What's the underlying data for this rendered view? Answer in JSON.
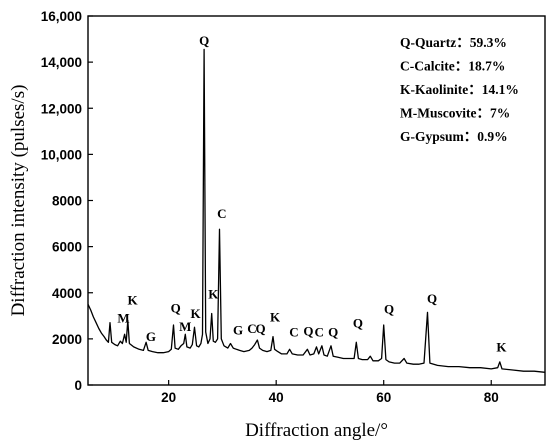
{
  "chart_data": {
    "type": "line",
    "xlabel": "Diffraction angle/°",
    "ylabel": "Diffraction intensity (pulses/s)",
    "xlim": [
      5,
      90
    ],
    "ylim": [
      0,
      16000
    ],
    "x_ticks": [
      {
        "value": 20,
        "label": "20"
      },
      {
        "value": 40,
        "label": "40"
      },
      {
        "value": 60,
        "label": "60"
      },
      {
        "value": 80,
        "label": "80"
      }
    ],
    "y_ticks": [
      {
        "value": 0,
        "label": "0"
      },
      {
        "value": 2000,
        "label": "2000"
      },
      {
        "value": 4000,
        "label": "4000"
      },
      {
        "value": 6000,
        "label": "6000"
      },
      {
        "value": 8000,
        "label": "8000"
      },
      {
        "value": 10000,
        "label": "10,000"
      },
      {
        "value": 12000,
        "label": "12,000"
      },
      {
        "value": 14000,
        "label": "14,000"
      },
      {
        "value": 16000,
        "label": "16,000"
      }
    ],
    "grid": false,
    "legend_position": "top-right",
    "legend": [
      "Q-Quartz：59.3%",
      "C-Calcite：18.7%",
      "K-Kaolinite：14.1%",
      "M-Muscovite：7%",
      "G-Gypsum：0.9%"
    ],
    "series": [
      {
        "color": "#000000",
        "points": [
          [
            5.0,
            3500
          ],
          [
            5.5,
            3250
          ],
          [
            6.0,
            2950
          ],
          [
            6.5,
            2700
          ],
          [
            7.0,
            2450
          ],
          [
            7.5,
            2250
          ],
          [
            8.0,
            2100
          ],
          [
            8.4,
            1950
          ],
          [
            8.8,
            1850
          ],
          [
            9.1,
            2700
          ],
          [
            9.4,
            1850
          ],
          [
            10.0,
            1750
          ],
          [
            10.5,
            1700
          ],
          [
            11.0,
            1900
          ],
          [
            11.4,
            1800
          ],
          [
            11.8,
            2200
          ],
          [
            12.1,
            1850
          ],
          [
            12.4,
            2800
          ],
          [
            12.7,
            1800
          ],
          [
            13.5,
            1650
          ],
          [
            14.5,
            1550
          ],
          [
            15.3,
            1500
          ],
          [
            15.8,
            1850
          ],
          [
            16.2,
            1500
          ],
          [
            17.0,
            1450
          ],
          [
            18.0,
            1400
          ],
          [
            19.0,
            1400
          ],
          [
            20.0,
            1450
          ],
          [
            20.5,
            1550
          ],
          [
            20.9,
            2600
          ],
          [
            21.2,
            1600
          ],
          [
            21.8,
            1550
          ],
          [
            22.3,
            1700
          ],
          [
            22.8,
            1800
          ],
          [
            23.1,
            2200
          ],
          [
            23.4,
            1650
          ],
          [
            24.0,
            1600
          ],
          [
            24.4,
            1750
          ],
          [
            24.8,
            2500
          ],
          [
            25.2,
            1700
          ],
          [
            25.6,
            1650
          ],
          [
            26.0,
            1800
          ],
          [
            26.3,
            2200
          ],
          [
            26.6,
            14550
          ],
          [
            26.9,
            2300
          ],
          [
            27.3,
            1800
          ],
          [
            27.7,
            2000
          ],
          [
            28.0,
            3100
          ],
          [
            28.3,
            1900
          ],
          [
            28.7,
            1850
          ],
          [
            29.1,
            2000
          ],
          [
            29.45,
            6750
          ],
          [
            29.8,
            2000
          ],
          [
            30.3,
            1700
          ],
          [
            31.0,
            1600
          ],
          [
            31.5,
            1800
          ],
          [
            32.0,
            1600
          ],
          [
            32.6,
            1550
          ],
          [
            33.2,
            1500
          ],
          [
            34.0,
            1450
          ],
          [
            35.0,
            1500
          ],
          [
            35.5,
            1600
          ],
          [
            36.0,
            1750
          ],
          [
            36.5,
            1950
          ],
          [
            36.9,
            1600
          ],
          [
            37.5,
            1500
          ],
          [
            38.3,
            1450
          ],
          [
            39.0,
            1500
          ],
          [
            39.4,
            2100
          ],
          [
            39.7,
            1550
          ],
          [
            40.3,
            1450
          ],
          [
            41.0,
            1350
          ],
          [
            42.0,
            1350
          ],
          [
            42.5,
            1550
          ],
          [
            43.0,
            1350
          ],
          [
            44.0,
            1300
          ],
          [
            45.0,
            1300
          ],
          [
            45.8,
            1550
          ],
          [
            46.3,
            1300
          ],
          [
            47.0,
            1350
          ],
          [
            47.5,
            1650
          ],
          [
            47.9,
            1350
          ],
          [
            48.5,
            1700
          ],
          [
            48.9,
            1300
          ],
          [
            49.5,
            1250
          ],
          [
            50.2,
            1700
          ],
          [
            50.6,
            1250
          ],
          [
            51.5,
            1200
          ],
          [
            52.5,
            1150
          ],
          [
            53.5,
            1150
          ],
          [
            54.5,
            1150
          ],
          [
            54.9,
            1850
          ],
          [
            55.3,
            1150
          ],
          [
            56.0,
            1100
          ],
          [
            57.0,
            1100
          ],
          [
            57.5,
            1250
          ],
          [
            58.0,
            1050
          ],
          [
            59.0,
            1050
          ],
          [
            59.6,
            1150
          ],
          [
            60.0,
            2600
          ],
          [
            60.4,
            1100
          ],
          [
            61.0,
            1000
          ],
          [
            62.0,
            950
          ],
          [
            63.0,
            950
          ],
          [
            63.8,
            1150
          ],
          [
            64.3,
            950
          ],
          [
            65.5,
            900
          ],
          [
            66.5,
            900
          ],
          [
            67.5,
            950
          ],
          [
            68.15,
            3150
          ],
          [
            68.6,
            950
          ],
          [
            70.0,
            850
          ],
          [
            72.0,
            800
          ],
          [
            74.0,
            800
          ],
          [
            76.0,
            750
          ],
          [
            78.0,
            750
          ],
          [
            80.0,
            700
          ],
          [
            81.2,
            750
          ],
          [
            81.6,
            1000
          ],
          [
            82.0,
            700
          ],
          [
            84.0,
            650
          ],
          [
            86.0,
            600
          ],
          [
            88.0,
            600
          ],
          [
            90.0,
            550
          ]
        ]
      }
    ],
    "annotations": [
      {
        "text": "M",
        "x": 11.6,
        "y": 2700
      },
      {
        "text": "K",
        "x": 13.3,
        "y": 3500
      },
      {
        "text": "G",
        "x": 16.7,
        "y": 1900
      },
      {
        "text": "Q",
        "x": 21.3,
        "y": 3150
      },
      {
        "text": "M",
        "x": 23.1,
        "y": 2350
      },
      {
        "text": "K",
        "x": 25.0,
        "y": 2900
      },
      {
        "text": "Q",
        "x": 26.6,
        "y": 14750
      },
      {
        "text": "K",
        "x": 28.3,
        "y": 3750
      },
      {
        "text": "C",
        "x": 29.9,
        "y": 7250
      },
      {
        "text": "G",
        "x": 32.9,
        "y": 2200
      },
      {
        "text": "C",
        "x": 35.5,
        "y": 2250
      },
      {
        "text": "Q",
        "x": 37.1,
        "y": 2250
      },
      {
        "text": "K",
        "x": 39.8,
        "y": 2750
      },
      {
        "text": "C",
        "x": 43.3,
        "y": 2100
      },
      {
        "text": "Q",
        "x": 46.0,
        "y": 2150
      },
      {
        "text": "C",
        "x": 48.0,
        "y": 2100
      },
      {
        "text": "Q",
        "x": 50.6,
        "y": 2100
      },
      {
        "text": "Q",
        "x": 55.2,
        "y": 2500
      },
      {
        "text": "Q",
        "x": 61.0,
        "y": 3100
      },
      {
        "text": "Q",
        "x": 69.0,
        "y": 3550
      },
      {
        "text": "K",
        "x": 81.9,
        "y": 1450
      }
    ]
  }
}
